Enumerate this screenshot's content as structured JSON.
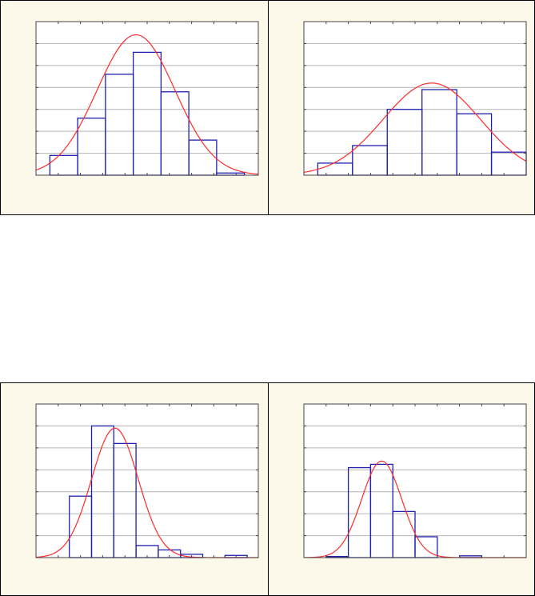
{
  "colors": {
    "panel_bg": "#fcf9ea",
    "plot_bg": "#ffffff",
    "grid": "#b4b4b4",
    "axis": "#444444",
    "bars": "#1f1fb0",
    "curve": "#ff2b2b"
  },
  "chart_data": [
    {
      "type": "bar",
      "title": "",
      "xlabel": "",
      "ylabel": "",
      "tick_labels_shown": false,
      "grid": true,
      "xlim": [
        0,
        8
      ],
      "ylim": [
        0,
        7
      ],
      "bins": [
        {
          "x0": 0.5,
          "x1": 1.5,
          "count": 0.9
        },
        {
          "x0": 1.5,
          "x1": 2.5,
          "count": 2.6
        },
        {
          "x0": 2.5,
          "x1": 3.5,
          "count": 4.6
        },
        {
          "x0": 3.5,
          "x1": 4.5,
          "count": 5.6
        },
        {
          "x0": 4.5,
          "x1": 5.5,
          "count": 3.8
        },
        {
          "x0": 5.5,
          "x1": 6.5,
          "count": 1.6
        },
        {
          "x0": 6.5,
          "x1": 7.5,
          "count": 0.1
        }
      ],
      "fit_curve": {
        "type": "normal",
        "mean": 3.6,
        "sd": 1.4,
        "peak": 6.4
      }
    },
    {
      "type": "bar",
      "title": "",
      "xlabel": "",
      "ylabel": "",
      "tick_labels_shown": false,
      "grid": true,
      "xlim": [
        0,
        8
      ],
      "ylim": [
        0,
        7
      ],
      "bins": [
        {
          "x0": 0.5,
          "x1": 1.75,
          "count": 0.55
        },
        {
          "x0": 1.75,
          "x1": 3.0,
          "count": 1.35
        },
        {
          "x0": 3.0,
          "x1": 4.25,
          "count": 3.0
        },
        {
          "x0": 4.25,
          "x1": 5.5,
          "count": 3.9
        },
        {
          "x0": 5.5,
          "x1": 6.75,
          "count": 2.8
        },
        {
          "x0": 6.75,
          "x1": 8.0,
          "count": 1.05
        }
      ],
      "fit_curve": {
        "type": "normal",
        "mean": 4.6,
        "sd": 1.75,
        "peak": 4.2
      }
    },
    {
      "type": "bar",
      "title": "",
      "xlabel": "",
      "ylabel": "",
      "tick_labels_shown": false,
      "grid": true,
      "xlim": [
        0,
        10
      ],
      "ylim": [
        0,
        7
      ],
      "bins": [
        {
          "x0": 1.5,
          "x1": 2.5,
          "count": 2.8
        },
        {
          "x0": 2.5,
          "x1": 3.5,
          "count": 6.0
        },
        {
          "x0": 3.5,
          "x1": 4.5,
          "count": 5.2
        },
        {
          "x0": 4.5,
          "x1": 5.5,
          "count": 0.55
        },
        {
          "x0": 5.5,
          "x1": 6.5,
          "count": 0.35
        },
        {
          "x0": 6.5,
          "x1": 7.5,
          "count": 0.15
        },
        {
          "x0": 7.5,
          "x1": 8.5,
          "count": 0.0
        },
        {
          "x0": 8.5,
          "x1": 9.5,
          "count": 0.1
        }
      ],
      "fit_curve": {
        "type": "normal",
        "mean": 3.55,
        "sd": 1.05,
        "peak": 5.9
      }
    },
    {
      "type": "bar",
      "title": "",
      "xlabel": "",
      "ylabel": "",
      "tick_labels_shown": false,
      "grid": true,
      "xlim": [
        0,
        10
      ],
      "ylim": [
        0,
        7
      ],
      "bins": [
        {
          "x0": 1.0,
          "x1": 2.0,
          "count": 0.05
        },
        {
          "x0": 2.0,
          "x1": 3.0,
          "count": 4.1
        },
        {
          "x0": 3.0,
          "x1": 4.0,
          "count": 4.25
        },
        {
          "x0": 4.0,
          "x1": 5.0,
          "count": 2.1
        },
        {
          "x0": 5.0,
          "x1": 6.0,
          "count": 0.95
        },
        {
          "x0": 6.0,
          "x1": 7.0,
          "count": 0.0
        },
        {
          "x0": 7.0,
          "x1": 8.0,
          "count": 0.08
        }
      ],
      "fit_curve": {
        "type": "normal",
        "mean": 3.5,
        "sd": 0.9,
        "peak": 4.4
      }
    }
  ]
}
